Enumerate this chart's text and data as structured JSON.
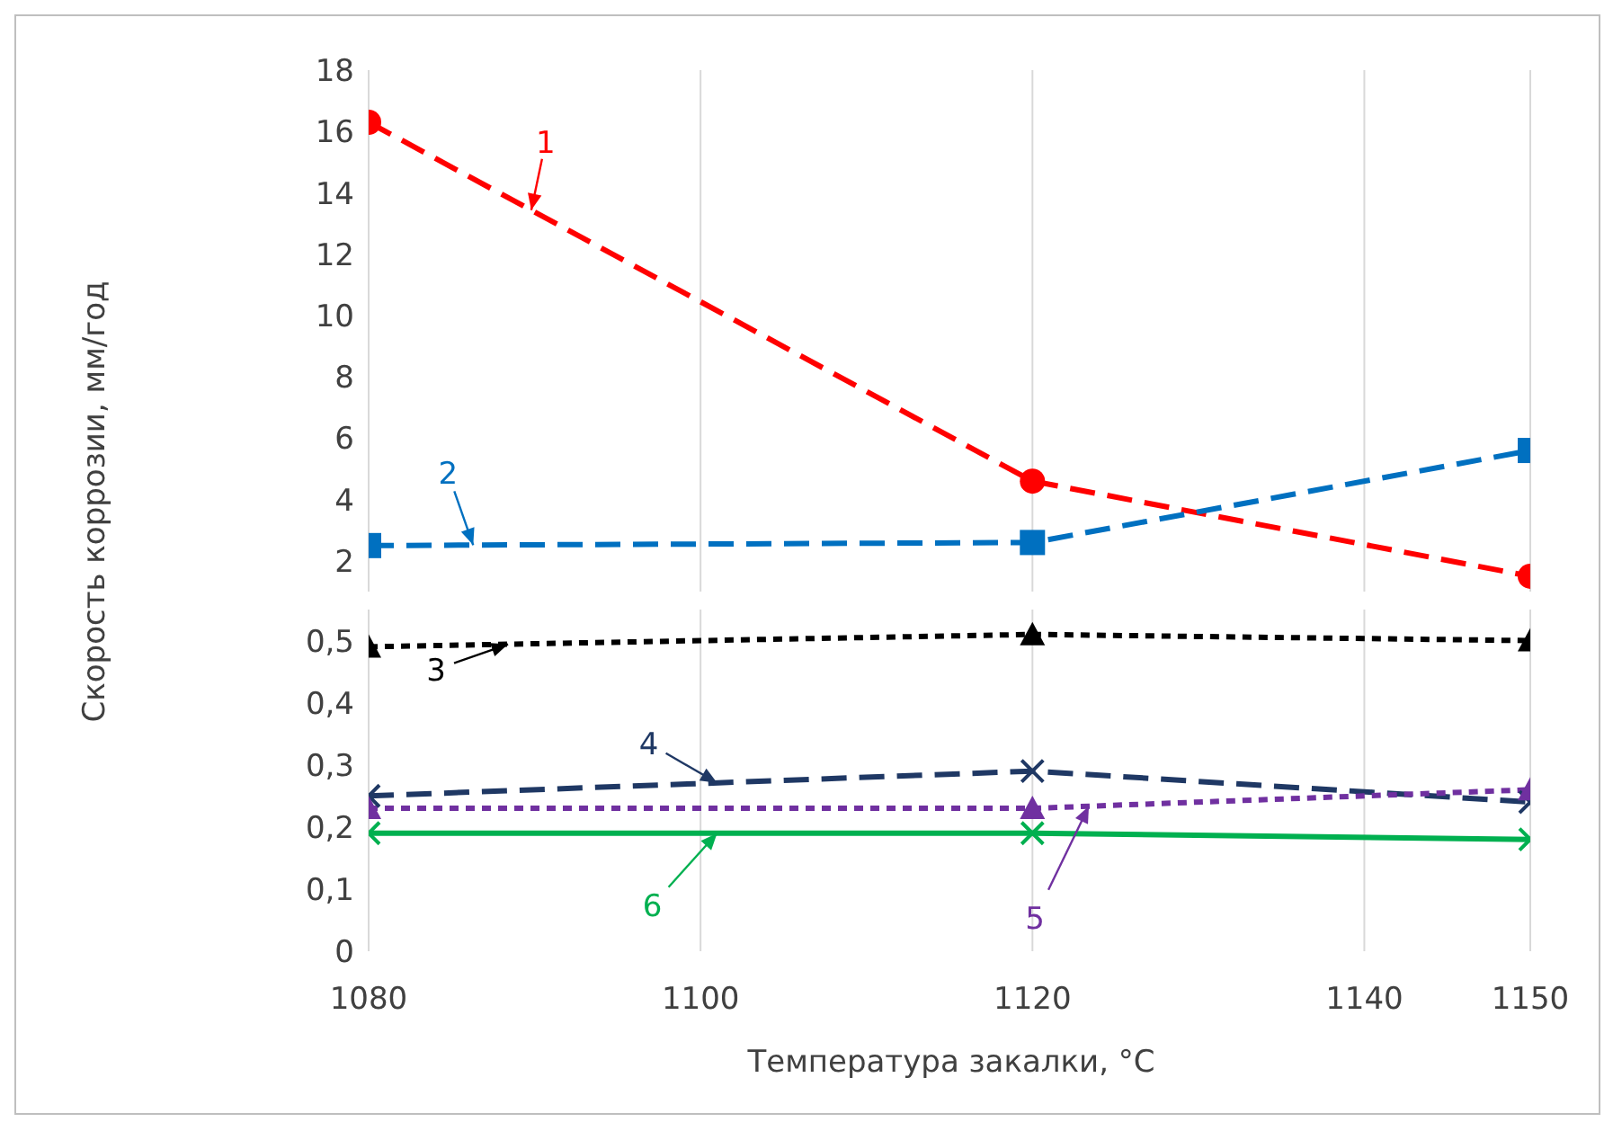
{
  "chart_data": [
    {
      "type": "line",
      "x": [
        1080,
        1120,
        1150
      ],
      "xlim": [
        1080,
        1150
      ],
      "xticks": [
        1080,
        1100,
        1120,
        1140,
        1150
      ],
      "ylim": [
        1,
        18
      ],
      "yticks": [
        2,
        4,
        6,
        8,
        10,
        12,
        14,
        16,
        18
      ],
      "grid": "x",
      "tick_labels": "y",
      "series": [
        {
          "name": "1",
          "color": "#ff0000",
          "values": [
            16.3,
            4.6,
            1.5
          ],
          "marker": "circle",
          "line_style": "dashed"
        },
        {
          "name": "2",
          "color": "#0070c0",
          "values": [
            2.5,
            2.6,
            5.6
          ],
          "marker": "square",
          "line_style": "dashed"
        }
      ]
    },
    {
      "type": "line",
      "x": [
        1080,
        1120,
        1150
      ],
      "xlim": [
        1080,
        1150
      ],
      "xticks": [
        1080,
        1100,
        1120,
        1140,
        1150
      ],
      "ylim": [
        0,
        0.55
      ],
      "yticks": [
        {
          "value": 0,
          "label": "0"
        },
        {
          "value": 0.1,
          "label": "0,1"
        },
        {
          "value": 0.2,
          "label": "0,2"
        },
        {
          "value": 0.3,
          "label": "0,3"
        },
        {
          "value": 0.4,
          "label": "0,4"
        },
        {
          "value": 0.5,
          "label": "0,5"
        }
      ],
      "grid": "x",
      "xlabel": "Температура закалки, °C",
      "ylabel": "Скорость коррозии, мм/год",
      "series": [
        {
          "name": "3",
          "color": "#000000",
          "values": [
            0.49,
            0.51,
            0.5
          ],
          "marker": "triangle",
          "line_style": "dotted"
        },
        {
          "name": "4",
          "color": "#1f3864",
          "values": [
            0.25,
            0.29,
            0.24
          ],
          "marker": "cross",
          "line_style": "dashed"
        },
        {
          "name": "5",
          "color": "#7030a0",
          "values": [
            0.23,
            0.23,
            0.26
          ],
          "marker": "triangle",
          "line_style": "dotted"
        },
        {
          "name": "6",
          "color": "#00b050",
          "values": [
            0.19,
            0.19,
            0.18
          ],
          "marker": "cross",
          "line_style": "solid"
        }
      ]
    }
  ]
}
